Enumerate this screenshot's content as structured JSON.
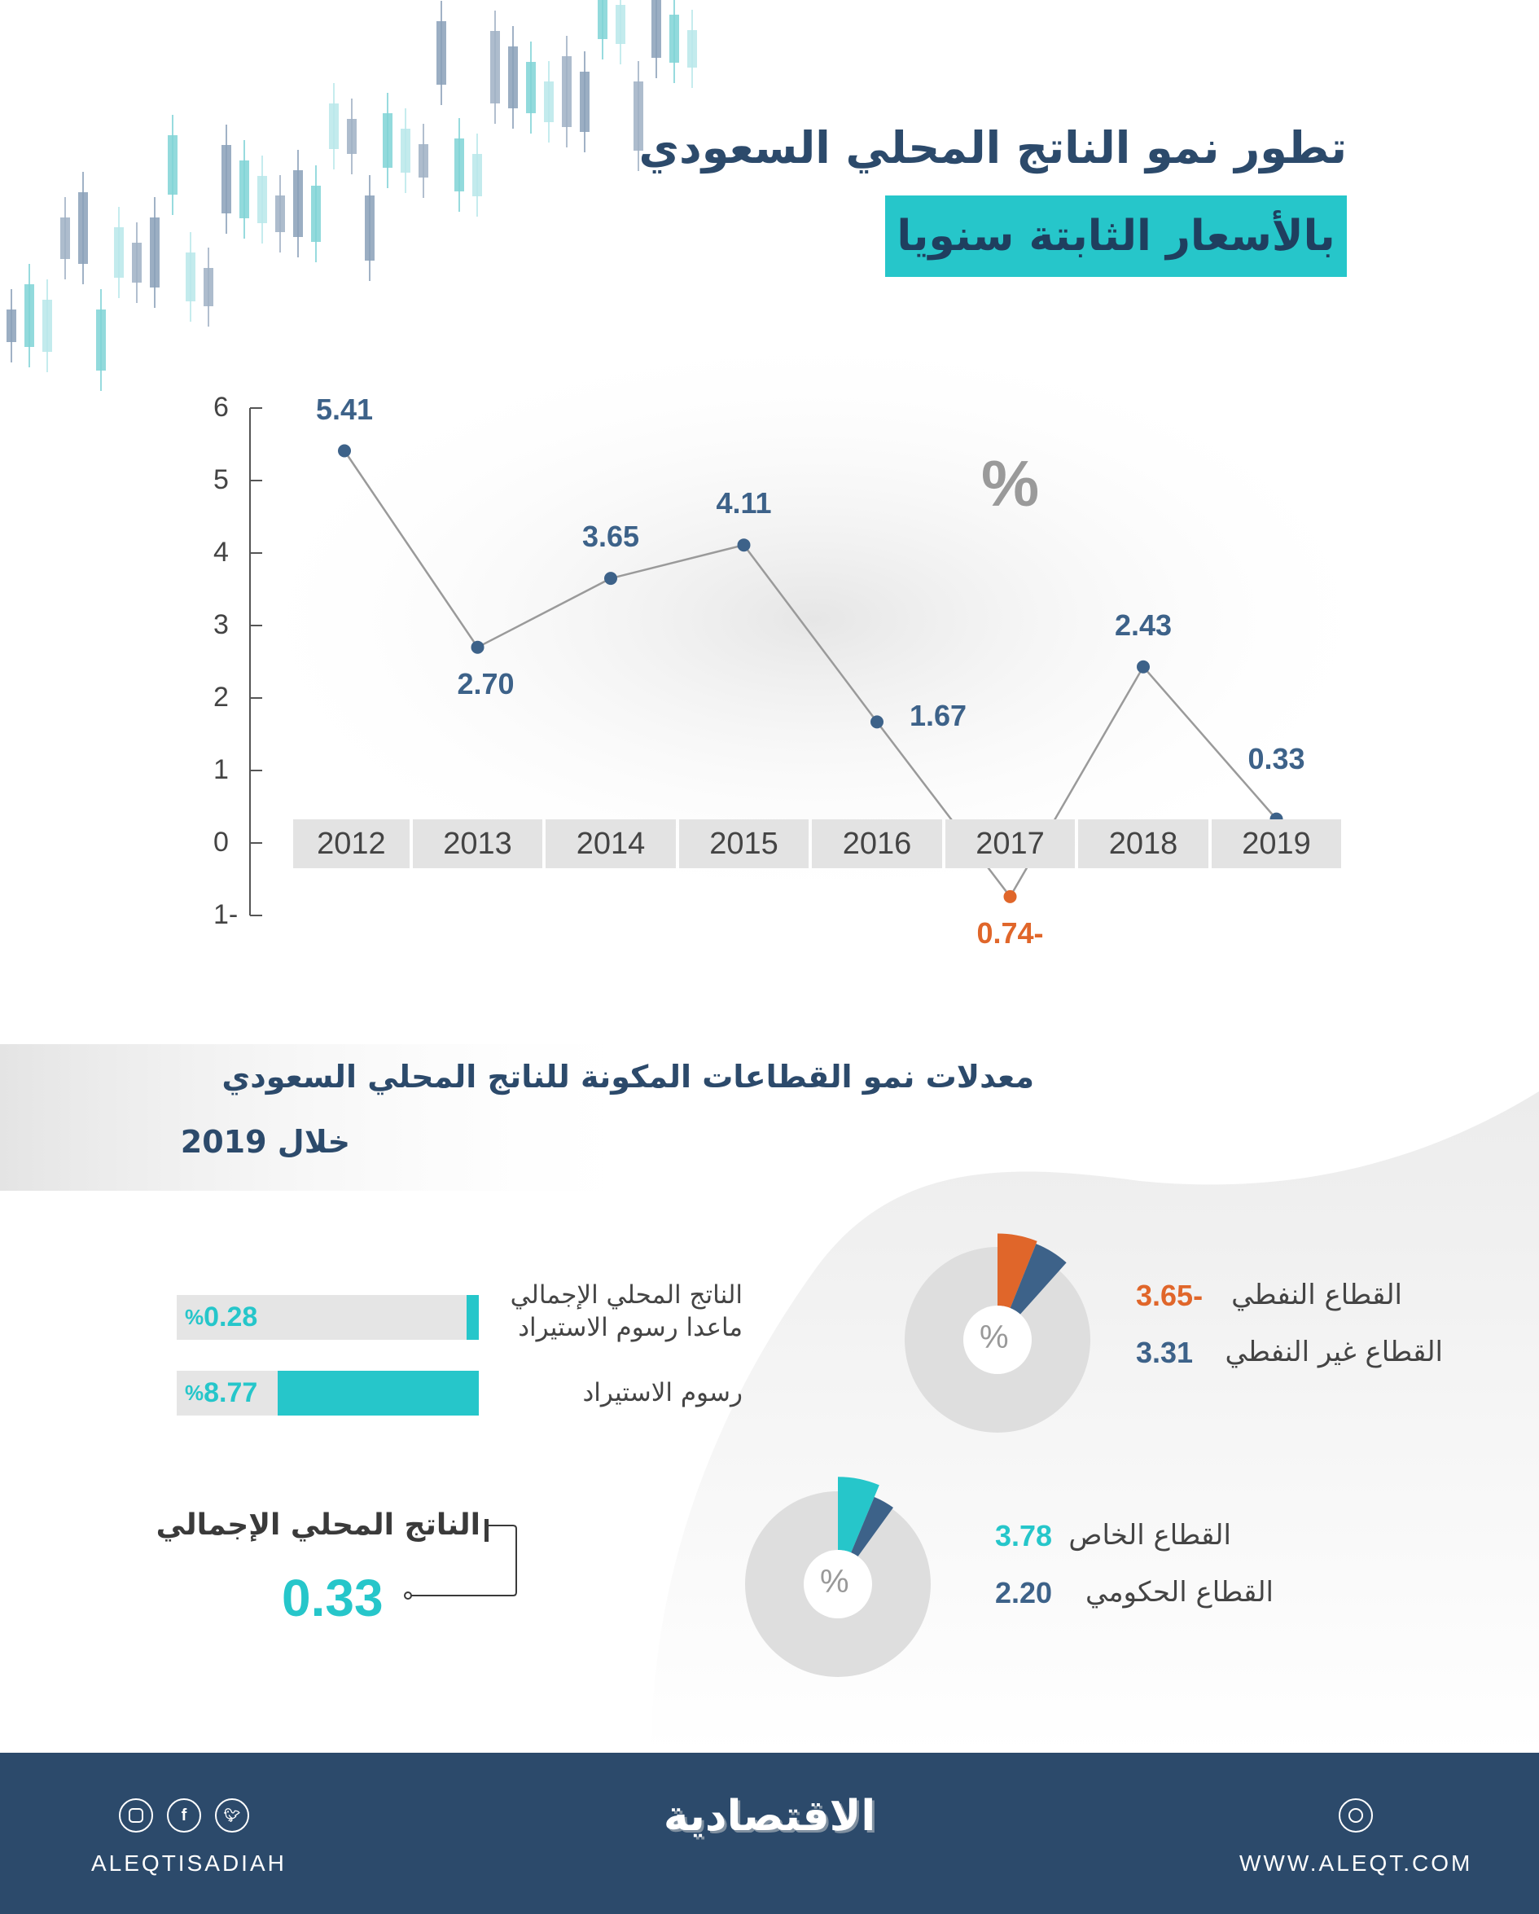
{
  "header": {
    "title": "تطور نمو الناتج المحلي السعودي",
    "subtitle": "بالأسعار الثابتة سنويا"
  },
  "chart_data": {
    "type": "line",
    "title": "تطور نمو الناتج المحلي السعودي بالأسعار الثابتة سنويا",
    "unit_label": "%",
    "categories": [
      "2012",
      "2013",
      "2014",
      "2015",
      "2016",
      "2017",
      "2018",
      "2019"
    ],
    "values": [
      5.41,
      2.7,
      3.65,
      4.11,
      1.67,
      -0.74,
      2.43,
      0.33
    ],
    "value_labels": [
      "5.41",
      "2.70",
      "3.65",
      "4.11",
      "1.67",
      "0.74-",
      "2.43",
      "0.33"
    ],
    "label_placement": [
      "above",
      "below",
      "above",
      "above",
      "right",
      "below",
      "above",
      "above"
    ],
    "ylim": [
      -1,
      6
    ],
    "yticks": [
      "6",
      "5",
      "4",
      "3",
      "2",
      "1",
      "0",
      "1-"
    ],
    "ytick_values": [
      6,
      5,
      4,
      3,
      2,
      1,
      0,
      -1
    ],
    "grid": false,
    "colors": {
      "line": "#9a9a9a",
      "positive": "#3d6289",
      "negative": "#e0662a"
    }
  },
  "sectors": {
    "title_line1": "معدلات نمو القطاعات المكونة للناتج المحلي السعودي",
    "title_line2": "خلال 2019",
    "bars": [
      {
        "label_line1": "الناتج المحلي الإجمالي",
        "label_line2": "ماعدا رسوم الاستيراد",
        "value": 0.28,
        "value_label": "0.28",
        "pct": "%"
      },
      {
        "label_line1": "رسوم الاستيراد",
        "label_line2": "",
        "value": 8.77,
        "value_label": "8.77",
        "pct": "%"
      }
    ],
    "bar_max": 10,
    "gdp_total": {
      "label": "الناتج المحلي الإجمالي",
      "value": "0.33"
    },
    "donut1": {
      "center_label": "%",
      "items": [
        {
          "label": "القطاع النفطي",
          "value": -3.65,
          "value_label": "3.65-",
          "color": "#e0662a"
        },
        {
          "label": "القطاع غير النفطي",
          "value": 3.31,
          "value_label": "3.31",
          "color": "#3d6289"
        }
      ]
    },
    "donut2": {
      "center_label": "%",
      "items": [
        {
          "label": "القطاع الخاص",
          "value": 3.78,
          "value_label": "3.78",
          "color": "#26c6ca"
        },
        {
          "label": "القطاع الحكومي",
          "value": 2.2,
          "value_label": "2.20",
          "color": "#3d6289"
        }
      ]
    }
  },
  "footer": {
    "brand": "الاقتصادية",
    "social_handle": "ALEQTISADIAH",
    "website": "WWW.ALEQT.COM",
    "icons": [
      "instagram-icon",
      "facebook-icon",
      "twitter-icon",
      "dribbble-icon"
    ],
    "bg_color": "#2c4a6b"
  }
}
